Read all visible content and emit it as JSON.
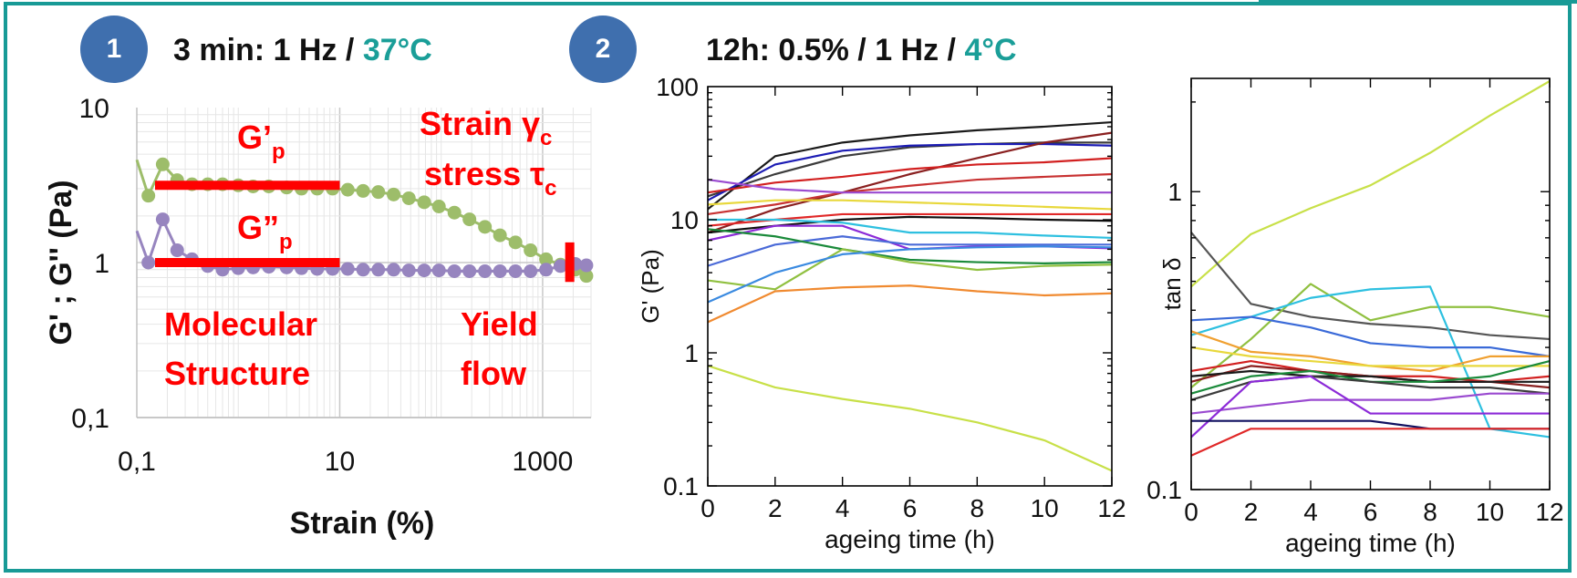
{
  "panels": {
    "p1": {
      "badge": "1",
      "title_prefix": "3 min: 1 Hz / ",
      "title_temp": "37°C"
    },
    "p2": {
      "badge": "2",
      "title_prefix": "12h: 0.5% / 1 Hz / ",
      "title_temp": "4°C"
    }
  },
  "colors": {
    "frame": "#189a96",
    "badge": "#3f6fae",
    "teal_text": "#1a9e98",
    "red_annotation": "#ff0000"
  },
  "chart_data": [
    {
      "type": "line",
      "id": "strain-sweep",
      "xlabel": "Strain (%)",
      "ylabel": "G' ; G'' (Pa)",
      "xscale": "log",
      "yscale": "log",
      "xlim": [
        0.1,
        3000
      ],
      "ylim": [
        0.1,
        10
      ],
      "xticks": [
        {
          "v": 0.1,
          "label": "0,1"
        },
        {
          "v": 10,
          "label": "10"
        },
        {
          "v": 1000,
          "label": "1000"
        }
      ],
      "yticks": [
        {
          "v": 10,
          "label": "10"
        },
        {
          "v": 1,
          "label": "1"
        },
        {
          "v": 0.1,
          "label": "0,1"
        }
      ],
      "grid": true,
      "series": [
        {
          "color": "#9dbd6a",
          "x": [
            0.1,
            0.13,
            0.18,
            0.25,
            0.35,
            0.5,
            0.7,
            1,
            1.4,
            2,
            3,
            4.2,
            6,
            8.5,
            12,
            17,
            24,
            34,
            48,
            68,
            95,
            135,
            190,
            270,
            380,
            540,
            760,
            1080,
            1500,
            2100,
            2700
          ],
          "y": [
            4.6,
            2.7,
            4.3,
            3.4,
            3.2,
            3.2,
            3.2,
            3.15,
            3.1,
            3.1,
            3.05,
            3.0,
            3.0,
            3.0,
            2.95,
            2.9,
            2.85,
            2.75,
            2.6,
            2.45,
            2.3,
            2.1,
            1.9,
            1.7,
            1.5,
            1.35,
            1.2,
            1.05,
            0.97,
            0.9,
            0.82
          ]
        },
        {
          "color": "#9785bf",
          "x": [
            0.1,
            0.13,
            0.18,
            0.25,
            0.35,
            0.5,
            0.7,
            1,
            1.4,
            2,
            3,
            4.2,
            6,
            8.5,
            12,
            17,
            24,
            34,
            48,
            68,
            95,
            135,
            190,
            270,
            380,
            540,
            760,
            1080,
            1500,
            2100,
            2700
          ],
          "y": [
            1.6,
            1.0,
            1.9,
            1.2,
            1.05,
            0.95,
            0.9,
            0.92,
            0.93,
            0.94,
            0.93,
            0.92,
            0.91,
            0.91,
            0.91,
            0.9,
            0.9,
            0.9,
            0.89,
            0.89,
            0.89,
            0.88,
            0.88,
            0.88,
            0.88,
            0.88,
            0.88,
            0.9,
            0.95,
            0.98,
            0.96
          ]
        }
      ],
      "annotations": {
        "gp": "G’",
        "gp_sub": "p",
        "gpp": "G”",
        "gpp_sub": "p",
        "strain": "Strain γ",
        "strain_sub": "c",
        "stress": "stress τ",
        "stress_sub": "c",
        "mol1": "Molecular",
        "mol2": "Structure",
        "yield1": "Yield",
        "yield2": "flow"
      },
      "plateau_bars": [
        {
          "name": "gp-plateau",
          "x0": 0.1,
          "x1": 10,
          "y": 3.15
        },
        {
          "name": "gpp-plateau",
          "x0": 0.1,
          "x1": 10,
          "y": 1.0
        }
      ],
      "yield_marker": {
        "x": 1850,
        "y0": 0.75,
        "y1": 1.35
      }
    },
    {
      "type": "line",
      "id": "storage-modulus-ageing",
      "xlabel": "ageing time (h)",
      "ylabel": "G' (Pa)",
      "yscale": "log",
      "xlim": [
        0,
        12
      ],
      "ylim": [
        0.1,
        100
      ],
      "xticks": [
        0,
        2,
        4,
        6,
        8,
        10,
        12
      ],
      "yticks": [
        {
          "v": 100,
          "label": "100"
        },
        {
          "v": 10,
          "label": "10"
        },
        {
          "v": 1,
          "label": "1"
        },
        {
          "v": 0.1,
          "label": "0.1"
        }
      ],
      "x": [
        0,
        2,
        4,
        6,
        8,
        10,
        12
      ],
      "series": [
        {
          "color": "#3c3c3c",
          "values": [
            15,
            22,
            30,
            35,
            37,
            38,
            38
          ]
        },
        {
          "color": "#1a1a1a",
          "values": [
            12,
            30,
            38,
            43,
            47,
            50,
            54
          ]
        },
        {
          "color": "#1c1cb4",
          "values": [
            14,
            26,
            33,
            36,
            37,
            37,
            36
          ]
        },
        {
          "color": "#8a2020",
          "values": [
            8,
            12,
            16,
            22,
            29,
            38,
            45
          ]
        },
        {
          "color": "#d22020",
          "values": [
            16,
            19,
            21,
            24,
            26,
            27,
            29
          ]
        },
        {
          "color": "#c83232",
          "values": [
            11,
            13,
            16,
            18,
            20,
            21,
            22
          ]
        },
        {
          "color": "#9a4ad0",
          "values": [
            20,
            17,
            16,
            16,
            16,
            16,
            16
          ]
        },
        {
          "color": "#e8d83c",
          "values": [
            13,
            14,
            14,
            13.5,
            13,
            12.5,
            12
          ]
        },
        {
          "color": "#e02828",
          "values": [
            9,
            10,
            11,
            11,
            11,
            11,
            11
          ]
        },
        {
          "color": "#101010",
          "values": [
            8,
            9,
            10,
            10.5,
            10.3,
            10,
            9.8
          ]
        },
        {
          "color": "#2ec0e0",
          "values": [
            10,
            10,
            9.5,
            8,
            8,
            7.6,
            7.3
          ]
        },
        {
          "color": "#8c2ad8",
          "values": [
            7,
            9,
            9,
            6,
            6.3,
            6.3,
            6.1
          ]
        },
        {
          "color": "#4a6ad8",
          "values": [
            4.5,
            6.5,
            7.5,
            6.5,
            6.5,
            6.5,
            6.5
          ]
        },
        {
          "color": "#1a8a3a",
          "values": [
            8.5,
            7.5,
            6,
            5,
            4.8,
            4.7,
            4.8
          ]
        },
        {
          "color": "#90c040",
          "values": [
            3.5,
            3,
            6,
            4.8,
            4.2,
            4.5,
            4.6
          ]
        },
        {
          "color": "#3a8ae0",
          "values": [
            2.4,
            4,
            5.5,
            6,
            6.2,
            6.3,
            6.2
          ]
        },
        {
          "color": "#f08a30",
          "values": [
            1.7,
            2.9,
            3.1,
            3.2,
            2.9,
            2.7,
            2.8
          ]
        },
        {
          "color": "#c8e048",
          "values": [
            0.8,
            0.55,
            0.45,
            0.38,
            0.3,
            0.22,
            0.13
          ]
        }
      ]
    },
    {
      "type": "line",
      "id": "tan-delta-ageing",
      "xlabel": "ageing time (h)",
      "ylabel": "tan δ",
      "yscale": "log",
      "xlim": [
        0,
        12
      ],
      "ylim": [
        0.1,
        2.4
      ],
      "xticks": [
        0,
        2,
        4,
        6,
        8,
        10,
        12
      ],
      "yticks": [
        {
          "v": 1,
          "label": "1"
        },
        {
          "v": 0.1,
          "label": "0.1"
        }
      ],
      "x": [
        0,
        2,
        4,
        6,
        8,
        10,
        12
      ],
      "series": [
        {
          "color": "#c8e048",
          "values": [
            0.48,
            0.72,
            0.88,
            1.05,
            1.35,
            1.8,
            2.35
          ]
        },
        {
          "color": "#555555",
          "values": [
            0.73,
            0.42,
            0.38,
            0.36,
            0.35,
            0.33,
            0.32
          ]
        },
        {
          "color": "#90c040",
          "values": [
            0.22,
            0.32,
            0.49,
            0.37,
            0.41,
            0.41,
            0.38
          ]
        },
        {
          "color": "#2ec0e0",
          "values": [
            0.33,
            0.38,
            0.44,
            0.47,
            0.48,
            0.16,
            0.15
          ]
        },
        {
          "color": "#3a6ad8",
          "values": [
            0.37,
            0.38,
            0.35,
            0.31,
            0.3,
            0.3,
            0.28
          ]
        },
        {
          "color": "#f0a030",
          "values": [
            0.34,
            0.29,
            0.28,
            0.26,
            0.25,
            0.28,
            0.28
          ]
        },
        {
          "color": "#e8d83c",
          "values": [
            0.3,
            0.28,
            0.27,
            0.26,
            0.26,
            0.26,
            0.26
          ]
        },
        {
          "color": "#d22020",
          "values": [
            0.25,
            0.27,
            0.25,
            0.24,
            0.24,
            0.23,
            0.24
          ]
        },
        {
          "color": "#8a2020",
          "values": [
            0.23,
            0.26,
            0.25,
            0.24,
            0.23,
            0.23,
            0.22
          ]
        },
        {
          "color": "#1a1a1a",
          "values": [
            0.24,
            0.25,
            0.24,
            0.24,
            0.23,
            0.23,
            0.23
          ]
        },
        {
          "color": "#1a8a3a",
          "values": [
            0.21,
            0.24,
            0.25,
            0.23,
            0.23,
            0.24,
            0.27
          ]
        },
        {
          "color": "#3c3c3c",
          "values": [
            0.2,
            0.23,
            0.24,
            0.23,
            0.22,
            0.22,
            0.21
          ]
        },
        {
          "color": "#9a4ad0",
          "values": [
            0.18,
            0.19,
            0.2,
            0.2,
            0.2,
            0.21,
            0.21
          ]
        },
        {
          "color": "#8c2ad8",
          "values": [
            0.15,
            0.23,
            0.24,
            0.18,
            0.18,
            0.18,
            0.18
          ]
        },
        {
          "color": "#101060",
          "values": [
            0.17,
            0.17,
            0.17,
            0.17,
            0.16,
            0.16,
            0.16
          ]
        },
        {
          "color": "#e02828",
          "values": [
            0.13,
            0.16,
            0.16,
            0.16,
            0.16,
            0.16,
            0.16
          ]
        }
      ]
    }
  ]
}
